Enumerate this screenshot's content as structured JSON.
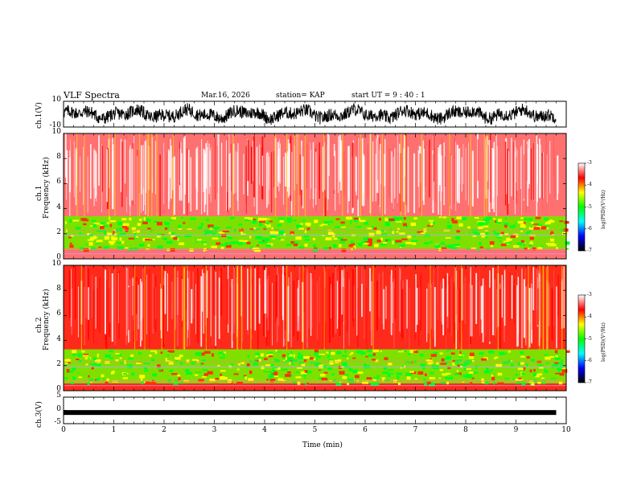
{
  "header": {
    "title": "VLF Spectra",
    "date": "Mar.16, 2026",
    "station": "station= KAP",
    "start_time": "start  UT  =   9 : 40 : 1"
  },
  "colors": {
    "colormap": [
      "#000000",
      "#0000ff",
      "#00ffff",
      "#00ff00",
      "#ffff00",
      "#ff0000",
      "#ffffff"
    ]
  },
  "chart_data": [
    {
      "type": "line",
      "name": "ch1-waveform",
      "ylabel": "ch.1(V)",
      "ylim": [
        -10,
        10
      ],
      "yticks": [
        "10",
        "-10"
      ],
      "xlim": [
        0,
        10
      ],
      "xlabel": ""
    },
    {
      "type": "heatmap",
      "name": "ch1-spectrogram",
      "ylabel_line1": "ch.1",
      "ylabel_line2": "Frequency  (kHz)",
      "ylim": [
        0,
        10
      ],
      "yticks": [
        "0",
        "2",
        "4",
        "6",
        "8",
        "10"
      ],
      "xlim": [
        0,
        10
      ],
      "bands": [
        {
          "from_khz": 0.0,
          "to_khz": 0.8,
          "level": "red/white"
        },
        {
          "from_khz": 0.8,
          "to_khz": 3.4,
          "level": "green/yellow"
        },
        {
          "from_khz": 3.4,
          "to_khz": 10.0,
          "level": "red/white"
        }
      ],
      "colorbar": {
        "label": "log(PSD)(V²/Hz)",
        "range": [
          -7,
          -3
        ],
        "ticks": [
          "-3",
          "-4",
          "-5",
          "-6",
          "-7"
        ]
      }
    },
    {
      "type": "heatmap",
      "name": "ch2-spectrogram",
      "ylabel_line1": "ch.2",
      "ylabel_line2": "Frequency  (kHz)",
      "ylim": [
        0,
        10
      ],
      "yticks": [
        "0",
        "2",
        "4",
        "6",
        "8",
        "10"
      ],
      "xlim": [
        0,
        10
      ],
      "bands": [
        {
          "from_khz": 0.0,
          "to_khz": 0.6,
          "level": "red"
        },
        {
          "from_khz": 0.6,
          "to_khz": 3.3,
          "level": "green/yellow"
        },
        {
          "from_khz": 3.3,
          "to_khz": 10.0,
          "level": "red"
        }
      ],
      "colorbar": {
        "label": "log(PSD)(V²/Hz)",
        "range": [
          -7,
          -3
        ],
        "ticks": [
          "-3",
          "-4",
          "-5",
          "-6",
          "-7"
        ]
      }
    },
    {
      "type": "line",
      "name": "ch3-waveform",
      "ylabel": "ch.3(V)",
      "ylim": [
        -5,
        5
      ],
      "yticks": [
        "5",
        "0",
        "-5"
      ],
      "xlim": [
        0,
        10
      ],
      "level": -0.8,
      "xlabel": "Time  (min)",
      "xticks": [
        "0",
        "1",
        "2",
        "3",
        "4",
        "5",
        "6",
        "7",
        "8",
        "9",
        "10"
      ]
    }
  ]
}
